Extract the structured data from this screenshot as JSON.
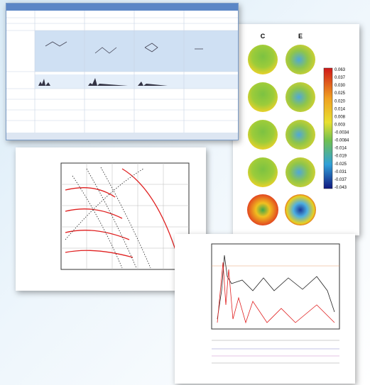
{
  "contour_panel": {
    "column_labels": [
      "C",
      "E"
    ],
    "colorbar_labels": [
      "0.063",
      "0.037",
      "0.030",
      "0.025",
      "0.020",
      "0.014",
      "0.008",
      "0.003",
      "-0.0034",
      "-0.0084",
      "-0.014",
      "-0.019",
      "-0.025",
      "-0.031",
      "-0.037",
      "-0.043"
    ]
  }
}
